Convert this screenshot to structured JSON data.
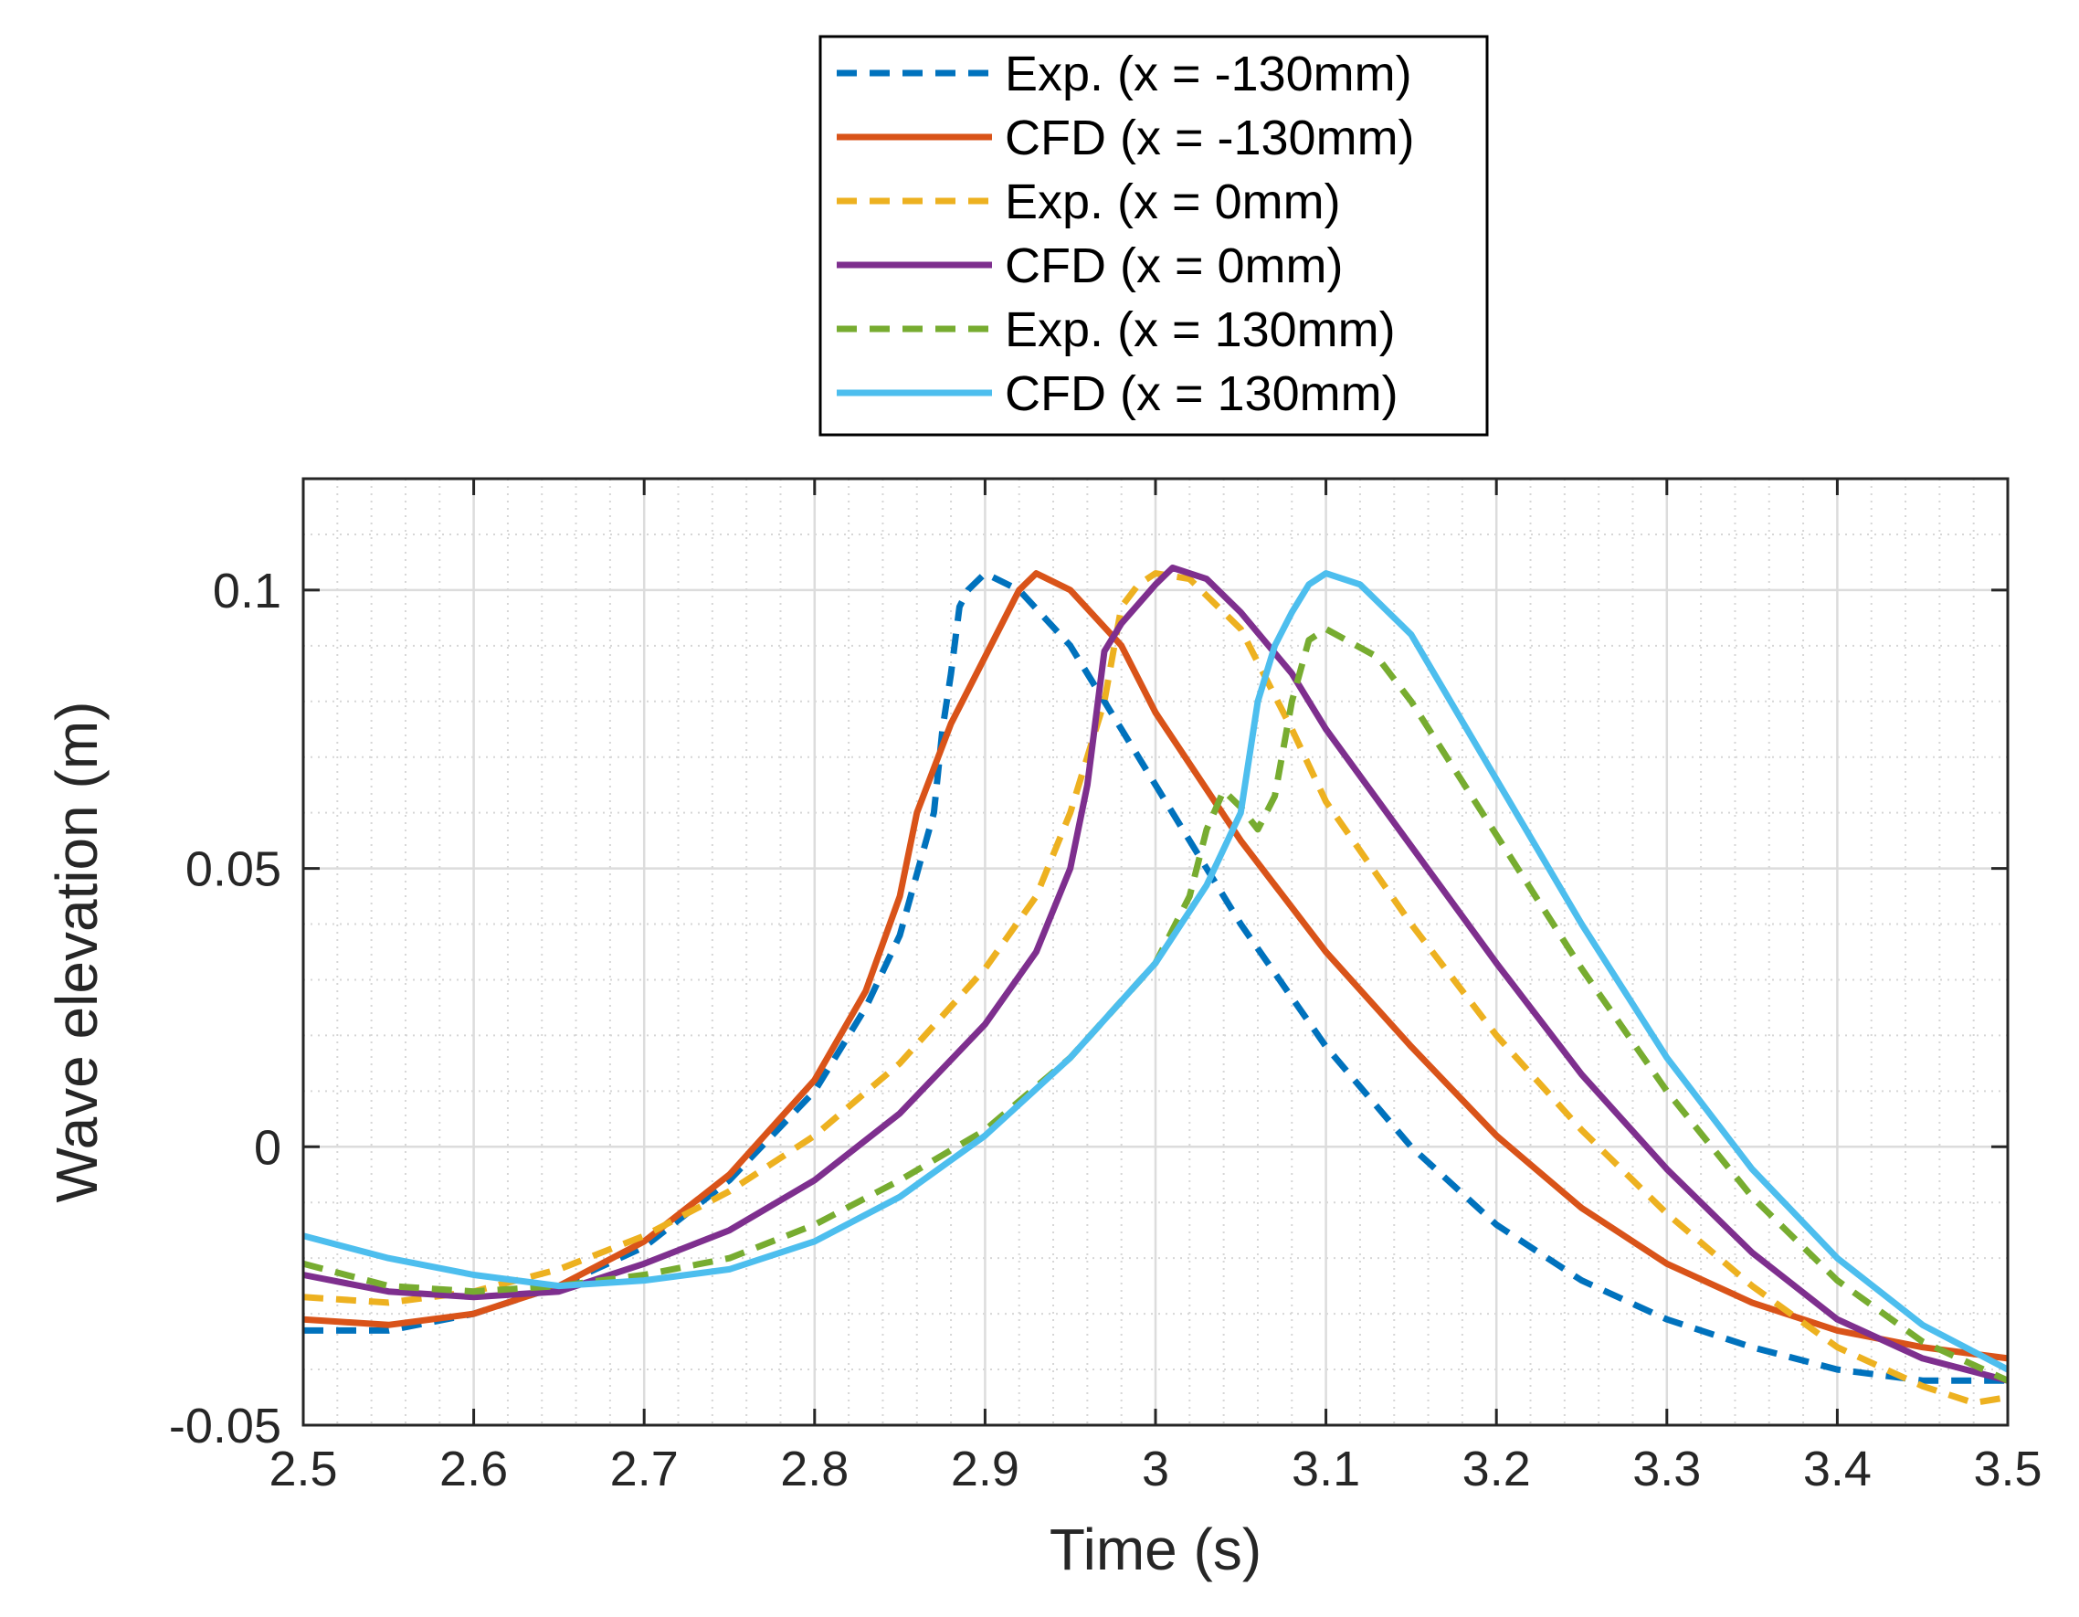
{
  "chart_data": {
    "type": "line",
    "title": "",
    "xlabel": "Time (s)",
    "ylabel": "Wave elevation (m)",
    "xlim": [
      2.5,
      3.5
    ],
    "ylim": [
      -0.05,
      0.12
    ],
    "xticks": [
      2.5,
      2.6,
      2.7,
      2.8,
      2.9,
      3.0,
      3.1,
      3.2,
      3.3,
      3.4,
      3.5
    ],
    "xtick_labels": [
      "2.5",
      "2.6",
      "2.7",
      "2.8",
      "2.9",
      "3",
      "3.1",
      "3.2",
      "3.3",
      "3.4",
      "3.5"
    ],
    "yticks": [
      -0.05,
      0,
      0.05,
      0.1
    ],
    "ytick_labels": [
      "-0.05",
      "0",
      "0.05",
      "0.1"
    ],
    "grid": true,
    "minor_grid": true,
    "legend_position": "top-center-outside",
    "series": [
      {
        "name": "Exp. (x = -130mm)",
        "color": "#0072BD",
        "dash": "dashed",
        "points": [
          [
            2.5,
            -0.033
          ],
          [
            2.55,
            -0.033
          ],
          [
            2.6,
            -0.03
          ],
          [
            2.65,
            -0.025
          ],
          [
            2.7,
            -0.018
          ],
          [
            2.75,
            -0.006
          ],
          [
            2.8,
            0.01
          ],
          [
            2.83,
            0.025
          ],
          [
            2.85,
            0.038
          ],
          [
            2.87,
            0.06
          ],
          [
            2.875,
            0.075
          ],
          [
            2.88,
            0.085
          ],
          [
            2.885,
            0.097
          ],
          [
            2.89,
            0.1
          ],
          [
            2.9,
            0.103
          ],
          [
            2.92,
            0.1
          ],
          [
            2.95,
            0.09
          ],
          [
            2.98,
            0.075
          ],
          [
            3.0,
            0.065
          ],
          [
            3.05,
            0.04
          ],
          [
            3.1,
            0.018
          ],
          [
            3.15,
            0.0
          ],
          [
            3.2,
            -0.014
          ],
          [
            3.25,
            -0.024
          ],
          [
            3.3,
            -0.031
          ],
          [
            3.35,
            -0.036
          ],
          [
            3.4,
            -0.04
          ],
          [
            3.45,
            -0.042
          ],
          [
            3.5,
            -0.042
          ]
        ]
      },
      {
        "name": "CFD (x = -130mm)",
        "color": "#D95319",
        "dash": "solid",
        "points": [
          [
            2.5,
            -0.031
          ],
          [
            2.55,
            -0.032
          ],
          [
            2.6,
            -0.03
          ],
          [
            2.65,
            -0.025
          ],
          [
            2.7,
            -0.017
          ],
          [
            2.75,
            -0.005
          ],
          [
            2.8,
            0.012
          ],
          [
            2.83,
            0.028
          ],
          [
            2.85,
            0.045
          ],
          [
            2.86,
            0.06
          ],
          [
            2.87,
            0.068
          ],
          [
            2.88,
            0.076
          ],
          [
            2.9,
            0.088
          ],
          [
            2.92,
            0.1
          ],
          [
            2.93,
            0.103
          ],
          [
            2.95,
            0.1
          ],
          [
            2.98,
            0.09
          ],
          [
            3.0,
            0.078
          ],
          [
            3.05,
            0.055
          ],
          [
            3.1,
            0.035
          ],
          [
            3.15,
            0.018
          ],
          [
            3.2,
            0.002
          ],
          [
            3.25,
            -0.011
          ],
          [
            3.3,
            -0.021
          ],
          [
            3.35,
            -0.028
          ],
          [
            3.4,
            -0.033
          ],
          [
            3.45,
            -0.036
          ],
          [
            3.5,
            -0.038
          ]
        ]
      },
      {
        "name": "Exp. (x = 0mm)",
        "color": "#EDB120",
        "dash": "dashed",
        "points": [
          [
            2.5,
            -0.027
          ],
          [
            2.55,
            -0.028
          ],
          [
            2.6,
            -0.026
          ],
          [
            2.65,
            -0.022
          ],
          [
            2.7,
            -0.016
          ],
          [
            2.75,
            -0.008
          ],
          [
            2.8,
            0.002
          ],
          [
            2.85,
            0.015
          ],
          [
            2.9,
            0.032
          ],
          [
            2.93,
            0.045
          ],
          [
            2.95,
            0.06
          ],
          [
            2.97,
            0.08
          ],
          [
            2.98,
            0.097
          ],
          [
            2.99,
            0.101
          ],
          [
            3.0,
            0.103
          ],
          [
            3.02,
            0.102
          ],
          [
            3.05,
            0.093
          ],
          [
            3.08,
            0.075
          ],
          [
            3.1,
            0.062
          ],
          [
            3.15,
            0.04
          ],
          [
            3.2,
            0.02
          ],
          [
            3.25,
            0.003
          ],
          [
            3.3,
            -0.012
          ],
          [
            3.35,
            -0.025
          ],
          [
            3.4,
            -0.036
          ],
          [
            3.45,
            -0.043
          ],
          [
            3.48,
            -0.046
          ],
          [
            3.5,
            -0.045
          ]
        ]
      },
      {
        "name": "CFD (x = 0mm)",
        "color": "#7E2F8E",
        "dash": "solid",
        "points": [
          [
            2.5,
            -0.023
          ],
          [
            2.55,
            -0.026
          ],
          [
            2.6,
            -0.027
          ],
          [
            2.65,
            -0.026
          ],
          [
            2.7,
            -0.021
          ],
          [
            2.75,
            -0.015
          ],
          [
            2.8,
            -0.006
          ],
          [
            2.85,
            0.006
          ],
          [
            2.9,
            0.022
          ],
          [
            2.93,
            0.035
          ],
          [
            2.95,
            0.05
          ],
          [
            2.96,
            0.065
          ],
          [
            2.97,
            0.089
          ],
          [
            2.98,
            0.094
          ],
          [
            3.0,
            0.101
          ],
          [
            3.01,
            0.104
          ],
          [
            3.03,
            0.102
          ],
          [
            3.05,
            0.096
          ],
          [
            3.08,
            0.085
          ],
          [
            3.1,
            0.075
          ],
          [
            3.15,
            0.054
          ],
          [
            3.2,
            0.033
          ],
          [
            3.25,
            0.013
          ],
          [
            3.3,
            -0.004
          ],
          [
            3.35,
            -0.019
          ],
          [
            3.4,
            -0.031
          ],
          [
            3.45,
            -0.038
          ],
          [
            3.5,
            -0.042
          ]
        ]
      },
      {
        "name": "Exp. (x = 130mm)",
        "color": "#77AC30",
        "dash": "dashed",
        "points": [
          [
            2.5,
            -0.021
          ],
          [
            2.55,
            -0.025
          ],
          [
            2.6,
            -0.026
          ],
          [
            2.65,
            -0.025
          ],
          [
            2.7,
            -0.023
          ],
          [
            2.75,
            -0.02
          ],
          [
            2.8,
            -0.014
          ],
          [
            2.85,
            -0.006
          ],
          [
            2.9,
            0.003
          ],
          [
            2.95,
            0.016
          ],
          [
            3.0,
            0.033
          ],
          [
            3.02,
            0.045
          ],
          [
            3.03,
            0.057
          ],
          [
            3.04,
            0.064
          ],
          [
            3.05,
            0.061
          ],
          [
            3.06,
            0.057
          ],
          [
            3.07,
            0.063
          ],
          [
            3.08,
            0.08
          ],
          [
            3.09,
            0.091
          ],
          [
            3.1,
            0.093
          ],
          [
            3.13,
            0.088
          ],
          [
            3.15,
            0.08
          ],
          [
            3.2,
            0.056
          ],
          [
            3.25,
            0.032
          ],
          [
            3.3,
            0.01
          ],
          [
            3.35,
            -0.009
          ],
          [
            3.4,
            -0.024
          ],
          [
            3.45,
            -0.035
          ],
          [
            3.5,
            -0.042
          ]
        ]
      },
      {
        "name": "CFD (x = 130mm)",
        "color": "#4DBEEE",
        "dash": "solid",
        "points": [
          [
            2.5,
            -0.016
          ],
          [
            2.55,
            -0.02
          ],
          [
            2.6,
            -0.023
          ],
          [
            2.65,
            -0.025
          ],
          [
            2.7,
            -0.024
          ],
          [
            2.75,
            -0.022
          ],
          [
            2.8,
            -0.017
          ],
          [
            2.85,
            -0.009
          ],
          [
            2.9,
            0.002
          ],
          [
            2.95,
            0.016
          ],
          [
            3.0,
            0.033
          ],
          [
            3.03,
            0.047
          ],
          [
            3.05,
            0.06
          ],
          [
            3.06,
            0.08
          ],
          [
            3.07,
            0.09
          ],
          [
            3.08,
            0.096
          ],
          [
            3.09,
            0.101
          ],
          [
            3.1,
            0.103
          ],
          [
            3.12,
            0.101
          ],
          [
            3.15,
            0.092
          ],
          [
            3.2,
            0.066
          ],
          [
            3.25,
            0.04
          ],
          [
            3.3,
            0.016
          ],
          [
            3.35,
            -0.004
          ],
          [
            3.4,
            -0.02
          ],
          [
            3.45,
            -0.032
          ],
          [
            3.5,
            -0.04
          ]
        ]
      }
    ]
  }
}
